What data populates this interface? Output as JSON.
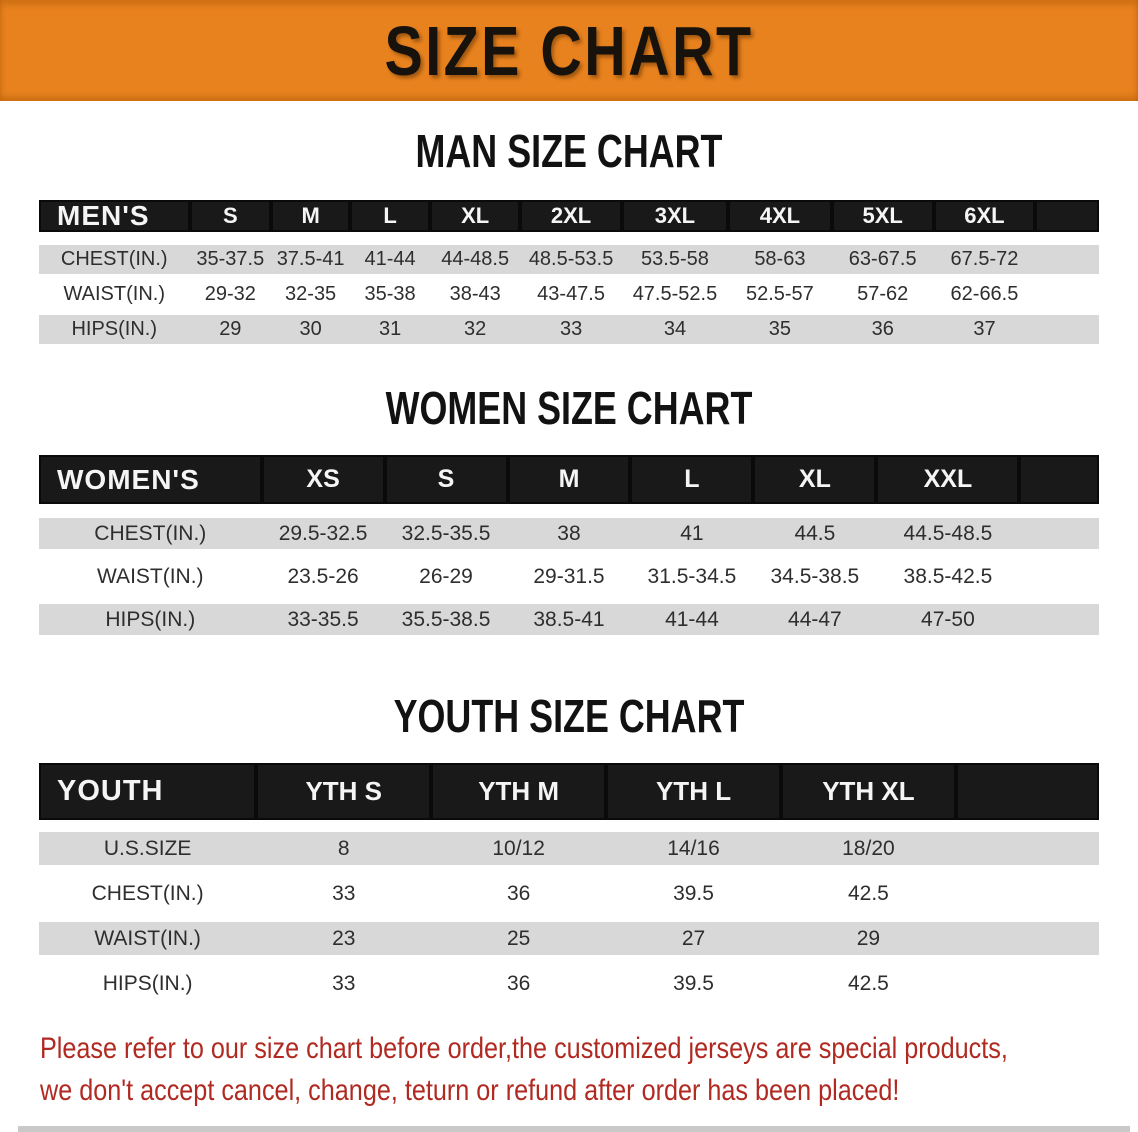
{
  "banner": {
    "title": "SIZE CHART"
  },
  "colors": {
    "banner_bg": "#E8821E",
    "table_header_bg": "#191919",
    "row_stripe": "#D8D8D8",
    "footer_text": "#B02A22"
  },
  "sections": {
    "men": {
      "heading": "MAN SIZE CHART",
      "table": {
        "label": "MEN'S",
        "columns": [
          "S",
          "M",
          "L",
          "XL",
          "2XL",
          "3XL",
          "4XL",
          "5XL",
          "6XL"
        ],
        "rows": [
          {
            "label": "CHEST(IN.)",
            "values": [
              "35-37.5",
              "37.5-41",
              "41-44",
              "44-48.5",
              "48.5-53.5",
              "53.5-58",
              "58-63",
              "63-67.5",
              "67.5-72"
            ]
          },
          {
            "label": "WAIST(IN.)",
            "values": [
              "29-32",
              "32-35",
              "35-38",
              "38-43",
              "43-47.5",
              "47.5-52.5",
              "52.5-57",
              "57-62",
              "62-66.5"
            ]
          },
          {
            "label": "HIPS(IN.)",
            "values": [
              "29",
              "30",
              "31",
              "32",
              "33",
              "34",
              "35",
              "36",
              "37"
            ]
          }
        ]
      }
    },
    "women": {
      "heading": "WOMEN SIZE CHART",
      "table": {
        "label": "WOMEN'S",
        "columns": [
          "XS",
          "S",
          "M",
          "L",
          "XL",
          "XXL"
        ],
        "rows": [
          {
            "label": "CHEST(IN.)",
            "values": [
              "29.5-32.5",
              "32.5-35.5",
              "38",
              "41",
              "44.5",
              "44.5-48.5"
            ]
          },
          {
            "label": "WAIST(IN.)",
            "values": [
              "23.5-26",
              "26-29",
              "29-31.5",
              "31.5-34.5",
              "34.5-38.5",
              "38.5-42.5"
            ]
          },
          {
            "label": "HIPS(IN.)",
            "values": [
              "33-35.5",
              "35.5-38.5",
              "38.5-41",
              "41-44",
              "44-47",
              "47-50"
            ]
          }
        ]
      }
    },
    "youth": {
      "heading": "YOUTH SIZE CHART",
      "table": {
        "label": "YOUTH",
        "columns": [
          "YTH S",
          "YTH M",
          "YTH L",
          "YTH XL"
        ],
        "rows": [
          {
            "label": "U.S.SIZE",
            "values": [
              "8",
              "10/12",
              "14/16",
              "18/20"
            ]
          },
          {
            "label": "CHEST(IN.)",
            "values": [
              "33",
              "36",
              "39.5",
              "42.5"
            ]
          },
          {
            "label": "WAIST(IN.)",
            "values": [
              "23",
              "25",
              "27",
              "29"
            ]
          },
          {
            "label": "HIPS(IN.)",
            "values": [
              "33",
              "36",
              "39.5",
              "42.5"
            ]
          }
        ]
      }
    }
  },
  "footer": {
    "line1": "Please refer to our size chart before order,the customized jerseys are special products,",
    "line2": "we don't accept cancel, change, teturn or refund after order has been placed!"
  }
}
